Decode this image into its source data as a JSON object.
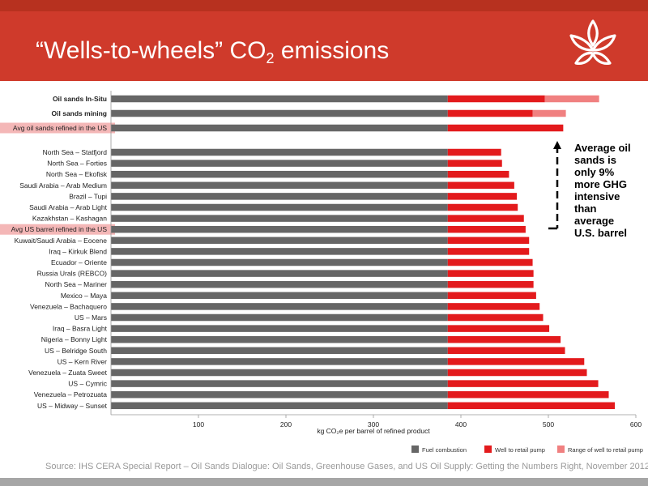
{
  "header": {
    "title_pre": "“Wells-to-wheels” CO",
    "title_sub": "2",
    "title_post": " emissions"
  },
  "source": "Source: IHS CERA Special Report – Oil Sands Dialogue: Oil Sands, Greenhouse Gases, and US Oil Supply: Getting the Numbers Right, November 2012",
  "colors": {
    "header_red": "#cf3a2b",
    "fuel_combustion": "#666666",
    "well_to_retail": "#e31a1c",
    "range": "#f08080",
    "highlight_label": "#f4b7b7"
  },
  "annotation": {
    "lines": [
      "Average oil",
      "sands is",
      "only 9%",
      "more GHG",
      "intensive",
      "than",
      "average",
      "U.S. barrel"
    ]
  },
  "chart_data": {
    "type": "bar",
    "orientation": "horizontal",
    "stacked": true,
    "xlabel": "kg CO₂e per barrel of refined product",
    "xticks": [
      100,
      200,
      300,
      400,
      500,
      600
    ],
    "xlim": [
      0,
      600
    ],
    "legend": [
      "Fuel combustion",
      "Well to retail pump",
      "Range of well to retail pump"
    ],
    "legend_position": "bottom-right",
    "rows": [
      {
        "label": "Oil sands In-Situ",
        "fuel": 385,
        "well": 111,
        "range": 62,
        "bold": true
      },
      {
        "label": "Oil sands mining",
        "fuel": 385,
        "well": 97,
        "range": 38,
        "bold": true
      },
      {
        "label": "Avg oil sands refined in the US",
        "fuel": 385,
        "well": 132,
        "range": 0,
        "highlight": true
      },
      {
        "label": "North Sea – Statfjord",
        "fuel": 385,
        "well": 61,
        "range": 0
      },
      {
        "label": "North Sea – Forties",
        "fuel": 385,
        "well": 62,
        "range": 0
      },
      {
        "label": "North Sea – Ekofisk",
        "fuel": 385,
        "well": 70,
        "range": 0
      },
      {
        "label": "Saudi Arabia – Arab Medium",
        "fuel": 385,
        "well": 76,
        "range": 0
      },
      {
        "label": "Brazil – Tupi",
        "fuel": 385,
        "well": 79,
        "range": 0
      },
      {
        "label": "Saudi Arabia – Arab Light",
        "fuel": 385,
        "well": 80,
        "range": 0
      },
      {
        "label": "Kazakhstan – Kashagan",
        "fuel": 385,
        "well": 87,
        "range": 0
      },
      {
        "label": "Avg US barrel refined in the US",
        "fuel": 385,
        "well": 89,
        "range": 0,
        "highlight": true
      },
      {
        "label": "Kuwait/Saudi Arabia – Eocene",
        "fuel": 385,
        "well": 93,
        "range": 0
      },
      {
        "label": "Iraq – Kirkuk Blend",
        "fuel": 385,
        "well": 93,
        "range": 0
      },
      {
        "label": "Ecuador – Oriente",
        "fuel": 385,
        "well": 97,
        "range": 0
      },
      {
        "label": "Russia Urals (REBCO)",
        "fuel": 385,
        "well": 98,
        "range": 0
      },
      {
        "label": "North Sea – Mariner",
        "fuel": 385,
        "well": 98,
        "range": 0
      },
      {
        "label": "Mexico – Maya",
        "fuel": 385,
        "well": 101,
        "range": 0
      },
      {
        "label": "Venezuela – Bachaquero",
        "fuel": 385,
        "well": 105,
        "range": 0
      },
      {
        "label": "US – Mars",
        "fuel": 385,
        "well": 109,
        "range": 0
      },
      {
        "label": "Iraq – Basra Light",
        "fuel": 385,
        "well": 116,
        "range": 0
      },
      {
        "label": "Nigeria – Bonny Light",
        "fuel": 385,
        "well": 129,
        "range": 0
      },
      {
        "label": "US – Belridge South",
        "fuel": 385,
        "well": 134,
        "range": 0
      },
      {
        "label": "US – Kern River",
        "fuel": 385,
        "well": 156,
        "range": 0
      },
      {
        "label": "Venezuela – Zuata Sweet",
        "fuel": 385,
        "well": 159,
        "range": 0
      },
      {
        "label": "US – Cymric",
        "fuel": 385,
        "well": 172,
        "range": 0
      },
      {
        "label": "Venezuela – Petrozuata",
        "fuel": 385,
        "well": 184,
        "range": 0
      },
      {
        "label": "US – Midway – Sunset",
        "fuel": 385,
        "well": 191,
        "range": 0
      }
    ]
  }
}
